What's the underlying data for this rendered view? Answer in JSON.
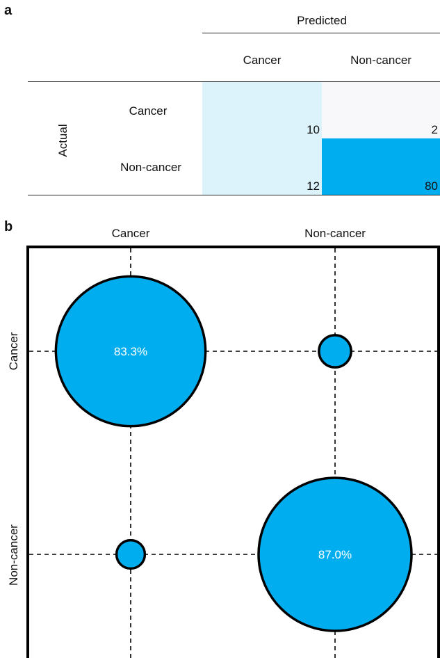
{
  "panel_a": {
    "label": "a",
    "predicted_header": "Predicted",
    "actual_header": "Actual",
    "col_labels": [
      "Cancer",
      "Non-cancer"
    ],
    "row_labels": [
      "Cancer",
      "Non-cancer"
    ],
    "counts": [
      [
        10,
        2
      ],
      [
        12,
        80
      ]
    ],
    "colors": [
      [
        "#dcf3fc",
        "#f8f8fa"
      ],
      [
        "#dcf3fc",
        "#00aeef"
      ]
    ]
  },
  "panel_b": {
    "label": "b",
    "bubble_color": "#00aeef",
    "percent_color": "#ffffff"
  },
  "chart_data": {
    "type": "scatter",
    "title": "",
    "x_categories": [
      "Cancer",
      "Non-cancer"
    ],
    "y_categories": [
      "Cancer",
      "Non-cancer"
    ],
    "points": [
      {
        "x": "Cancer",
        "y": "Cancer",
        "percent": 83.3,
        "label": "83.3%"
      },
      {
        "x": "Non-cancer",
        "y": "Cancer",
        "percent": 16.7,
        "label": ""
      },
      {
        "x": "Cancer",
        "y": "Non-cancer",
        "percent": 13.0,
        "label": ""
      },
      {
        "x": "Non-cancer",
        "y": "Non-cancer",
        "percent": 87.0,
        "label": "87.0%"
      }
    ],
    "grid": true,
    "grid_style": "dashed"
  }
}
